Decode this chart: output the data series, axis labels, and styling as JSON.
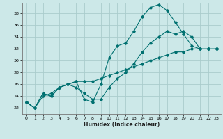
{
  "title": "",
  "xlabel": "Humidex (Indice chaleur)",
  "ylabel": "",
  "background_color": "#cce8e8",
  "grid_color": "#aacccc",
  "line_color": "#007070",
  "xlim": [
    -0.5,
    23.5
  ],
  "ylim": [
    21.0,
    39.8
  ],
  "yticks": [
    22,
    24,
    26,
    28,
    30,
    32,
    34,
    36,
    38
  ],
  "xticks": [
    0,
    1,
    2,
    3,
    4,
    5,
    6,
    7,
    8,
    9,
    10,
    11,
    12,
    13,
    14,
    15,
    16,
    17,
    18,
    19,
    20,
    21,
    22,
    23
  ],
  "curve1_x": [
    0,
    1,
    2,
    3,
    4,
    5,
    6,
    7,
    8,
    9,
    10,
    11,
    12,
    13,
    14,
    15,
    16,
    17,
    18,
    19,
    20,
    21,
    22,
    23
  ],
  "curve1_y": [
    23.0,
    22.0,
    24.5,
    24.0,
    25.5,
    26.0,
    26.5,
    23.5,
    23.0,
    26.0,
    30.5,
    32.5,
    33.0,
    35.0,
    37.5,
    39.0,
    39.5,
    38.5,
    36.5,
    34.5,
    32.5,
    32.0,
    32.0,
    32.0
  ],
  "curve2_x": [
    0,
    1,
    2,
    3,
    4,
    5,
    6,
    7,
    8,
    9,
    10,
    11,
    12,
    13,
    14,
    15,
    16,
    17,
    18,
    19,
    20,
    21,
    22,
    23
  ],
  "curve2_y": [
    23.0,
    22.0,
    24.5,
    24.0,
    25.5,
    26.0,
    25.5,
    24.5,
    23.5,
    23.5,
    25.5,
    27.0,
    28.0,
    29.5,
    31.5,
    33.0,
    34.0,
    35.0,
    34.5,
    35.0,
    34.0,
    32.0,
    32.0,
    32.0
  ],
  "curve3_x": [
    0,
    1,
    2,
    3,
    4,
    5,
    6,
    7,
    8,
    9,
    10,
    11,
    12,
    13,
    14,
    15,
    16,
    17,
    18,
    19,
    20,
    21,
    22,
    23
  ],
  "curve3_y": [
    23.0,
    22.0,
    24.0,
    24.5,
    25.5,
    26.0,
    26.5,
    26.5,
    26.5,
    27.0,
    27.5,
    28.0,
    28.5,
    29.0,
    29.5,
    30.0,
    30.5,
    31.0,
    31.5,
    31.5,
    32.0,
    32.0,
    32.0,
    32.0
  ],
  "xlabel_fontsize": 5.5,
  "tick_fontsize": 4.5
}
